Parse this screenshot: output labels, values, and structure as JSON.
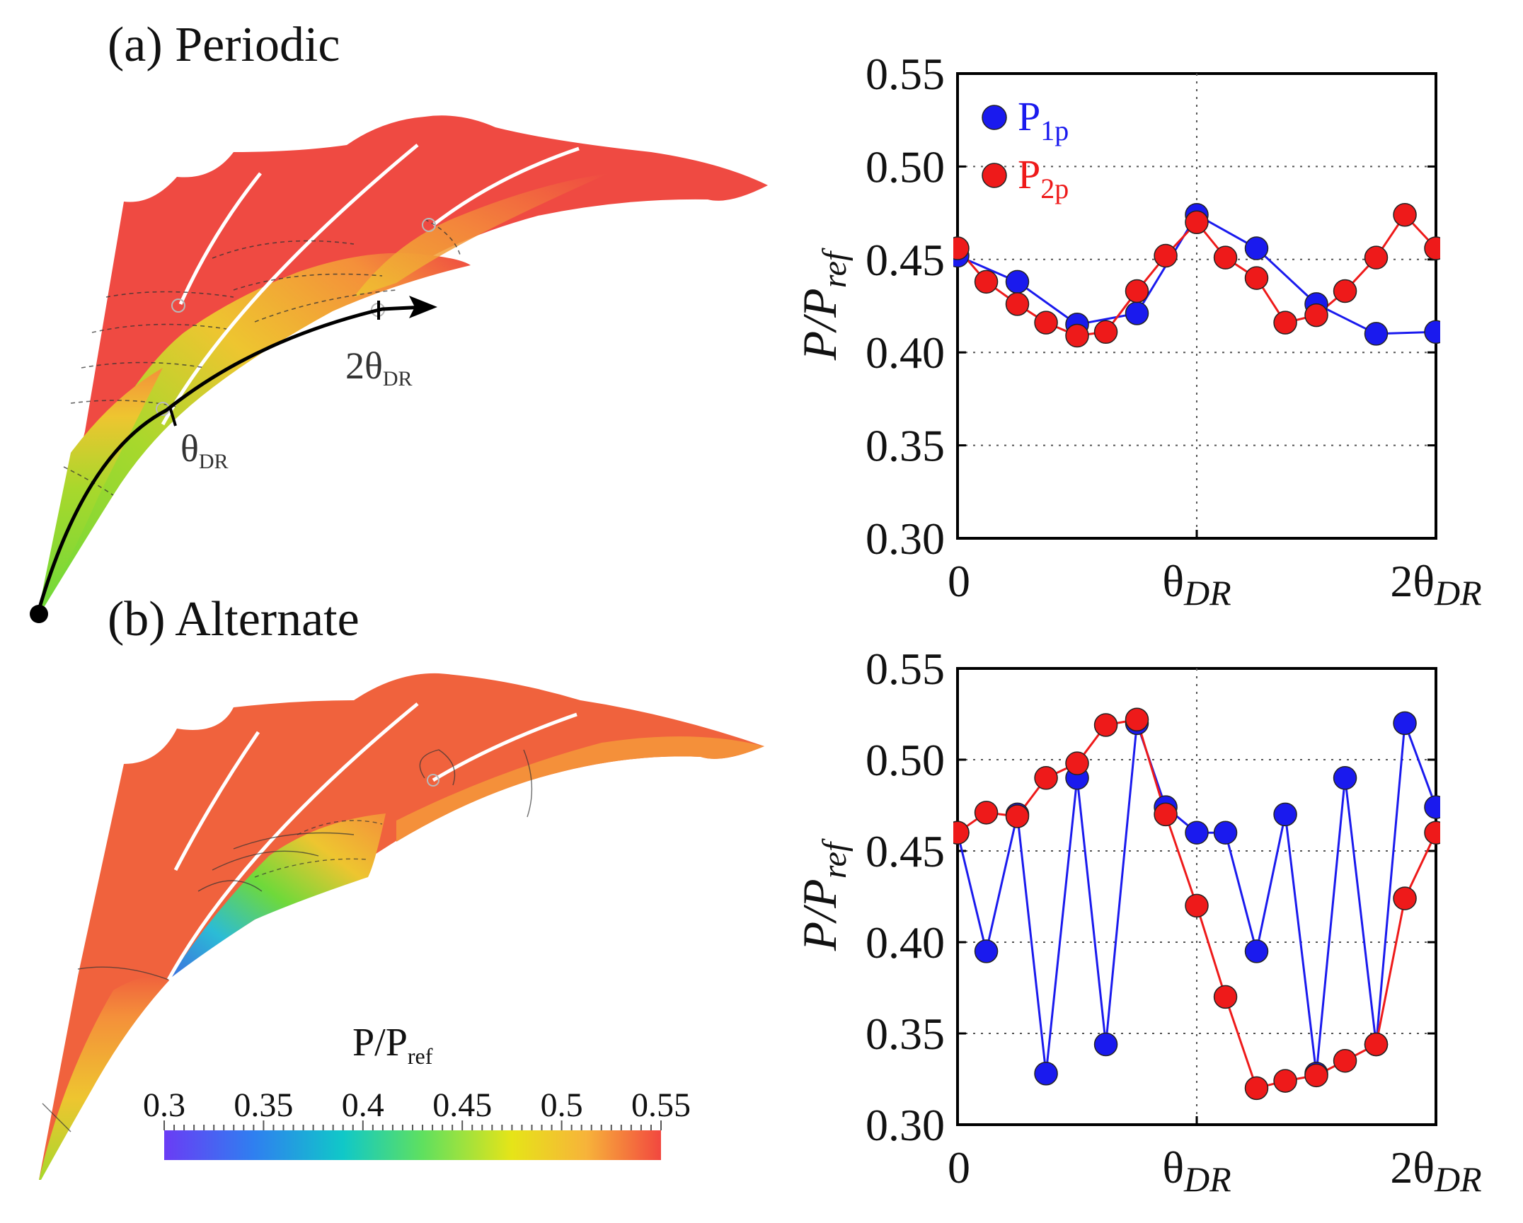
{
  "panels": {
    "a": {
      "label": "(a) Periodic"
    },
    "b": {
      "label": "(b) Alternate"
    }
  },
  "contour": {
    "arc_labels": {
      "theta": "θ",
      "theta_sub": "DR",
      "two_theta": "2θ",
      "two_theta_sub": "DR"
    },
    "colorbar": {
      "title": "P/P",
      "title_sub": "ref",
      "ticks": [
        "0.3",
        "0.35",
        "0.4",
        "0.45",
        "0.5",
        "0.55"
      ],
      "range": [
        0.3,
        0.55
      ],
      "colors": [
        "#6a3cf5",
        "#2f7ff0",
        "#10c8c8",
        "#5fe05f",
        "#e6e418",
        "#f7b33a",
        "#f2473f"
      ]
    },
    "fill_colors": {
      "red": "#ef4a42",
      "red_orange": "#f0623d",
      "orange": "#f4903a",
      "yellow_orange": "#eec530",
      "yellow": "#d2db2c",
      "green": "#6fd93a",
      "green_yellow": "#a8d82c",
      "cyan": "#2bbcd6",
      "blue": "#3d6de0"
    }
  },
  "legend": {
    "entries": [
      {
        "name": "P",
        "sub": "1p",
        "color": "#1a1aee"
      },
      {
        "name": "P",
        "sub": "2p",
        "color": "#ee1a1a"
      }
    ]
  },
  "axis_text": {
    "ylabel": "P/P",
    "ylabel_sub": "ref",
    "xticks": [
      {
        "main": "0",
        "sub": ""
      },
      {
        "main": "θ",
        "sub": "DR"
      },
      {
        "main": "2θ",
        "sub": "DR"
      }
    ],
    "yticks": [
      "0.30",
      "0.35",
      "0.40",
      "0.45",
      "0.50",
      "0.55"
    ]
  },
  "chart_data": [
    {
      "type": "line",
      "title": "(a) Periodic",
      "xlabel": "",
      "ylabel": "P/Pref",
      "xlim": [
        0,
        2
      ],
      "ylim": [
        0.3,
        0.55
      ],
      "grid": true,
      "series": [
        {
          "name": "P1p",
          "color": "#1a1aee",
          "x": [
            0.0,
            0.25,
            0.5,
            0.75,
            1.0,
            1.25,
            1.5,
            1.75,
            2.0
          ],
          "y": [
            0.452,
            0.438,
            0.415,
            0.421,
            0.474,
            0.456,
            0.426,
            0.41,
            0.411
          ]
        },
        {
          "name": "P2p",
          "color": "#ee1a1a",
          "x": [
            0.0,
            0.12,
            0.25,
            0.37,
            0.5,
            0.62,
            0.75,
            0.87,
            1.0,
            1.12,
            1.25,
            1.37,
            1.5,
            1.62,
            1.75,
            1.87,
            2.0
          ],
          "y": [
            0.456,
            0.438,
            0.426,
            0.416,
            0.409,
            0.411,
            0.433,
            0.452,
            0.47,
            0.451,
            0.44,
            0.416,
            0.42,
            0.433,
            0.451,
            0.474,
            0.456
          ]
        }
      ]
    },
    {
      "type": "line",
      "title": "(b) Alternate",
      "xlabel": "",
      "ylabel": "P/Pref",
      "xlim": [
        0,
        2
      ],
      "ylim": [
        0.3,
        0.55
      ],
      "grid": true,
      "series": [
        {
          "name": "P1p",
          "color": "#1a1aee",
          "x": [
            0.0,
            0.12,
            0.25,
            0.37,
            0.5,
            0.62,
            0.75,
            0.87,
            1.0,
            1.12,
            1.25,
            1.37,
            1.5,
            1.62,
            1.75,
            1.87,
            2.0
          ],
          "y": [
            0.46,
            0.395,
            0.47,
            0.328,
            0.49,
            0.344,
            0.52,
            0.474,
            0.46,
            0.46,
            0.395,
            0.47,
            0.328,
            0.49,
            0.344,
            0.52,
            0.474
          ]
        },
        {
          "name": "P2p",
          "color": "#ee1a1a",
          "x": [
            0.0,
            0.12,
            0.25,
            0.37,
            0.5,
            0.62,
            0.75,
            0.87,
            1.0,
            1.12,
            1.25,
            1.37,
            1.5,
            1.62,
            1.75,
            1.87,
            2.0
          ],
          "y": [
            0.46,
            0.471,
            0.469,
            0.49,
            0.498,
            0.519,
            0.522,
            0.47,
            0.42,
            0.37,
            0.32,
            0.324,
            0.327,
            0.335,
            0.344,
            0.424,
            0.46
          ]
        }
      ]
    }
  ]
}
